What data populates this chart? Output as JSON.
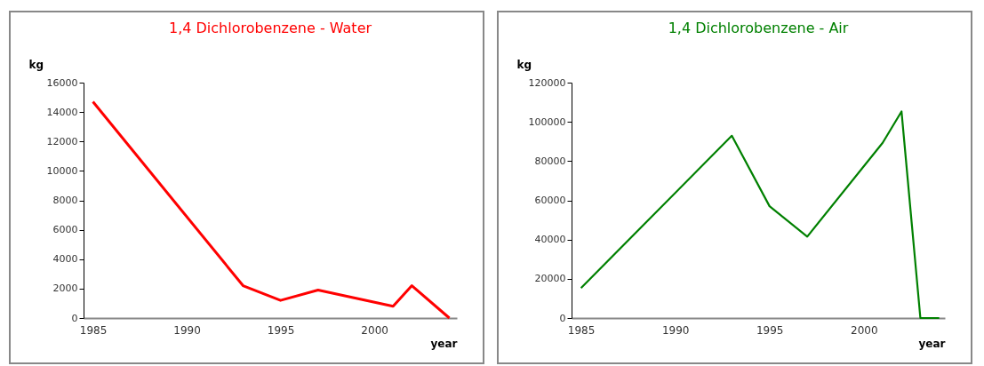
{
  "chart_data": [
    {
      "type": "line",
      "title": "1,4 Dichlorobenzene - Water",
      "xlabel": "year",
      "ylabel": "kg",
      "x": [
        1985,
        1993,
        1995,
        1997,
        2001,
        2002,
        2004
      ],
      "series": [
        {
          "color": "#ff0000",
          "values": [
            14700,
            2200,
            1200,
            1900,
            800,
            2200,
            0
          ]
        }
      ],
      "xlim": [
        1984.5,
        2004.4
      ],
      "xticks": [
        1985,
        1990,
        1995,
        2000
      ],
      "ylim": [
        0,
        16000
      ],
      "yticks": [
        0,
        2000,
        4000,
        6000,
        8000,
        10000,
        12000,
        14000,
        16000
      ]
    },
    {
      "type": "line",
      "title": "1,4 Dichlorobenzene - Air",
      "xlabel": "year",
      "ylabel": "kg",
      "x": [
        1985,
        1993,
        1995,
        1997,
        2001,
        2002,
        2003,
        2004
      ],
      "series": [
        {
          "color": "#008000",
          "values": [
            15300,
            92900,
            57000,
            41500,
            89300,
            105300,
            0,
            0
          ]
        }
      ],
      "xlim": [
        1984.5,
        2004.3
      ],
      "xticks": [
        1985,
        1990,
        1995,
        2000
      ],
      "ylim": [
        0,
        120000
      ],
      "yticks": [
        0,
        20000,
        40000,
        60000,
        80000,
        100000,
        120000
      ]
    }
  ]
}
